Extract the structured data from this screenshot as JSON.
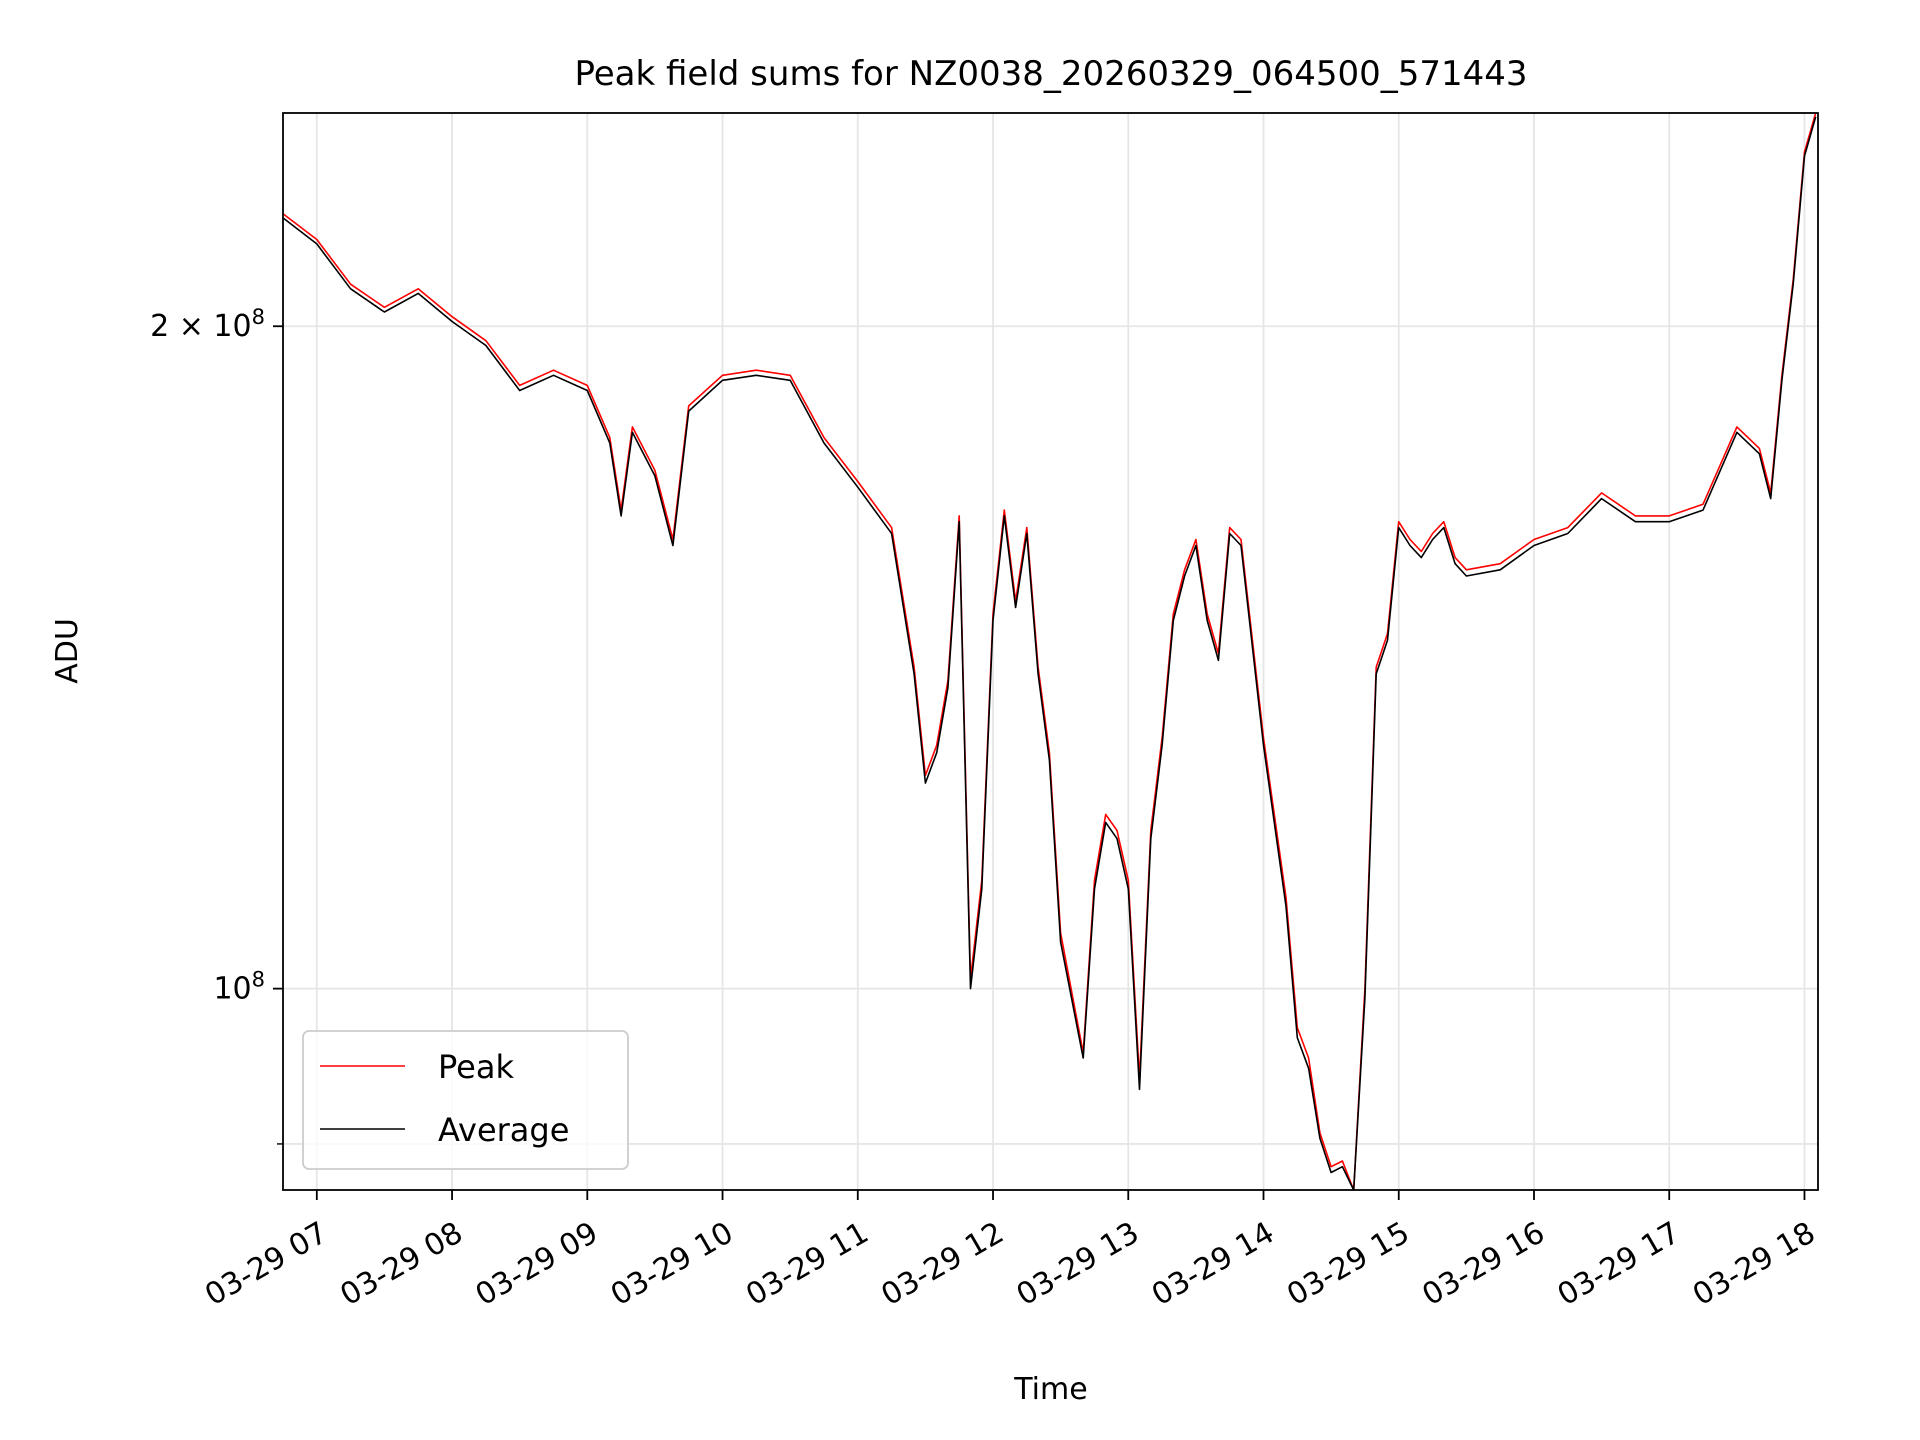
{
  "chart_data": {
    "type": "line",
    "title": "Peak field sums for NZ0038_20260329_064500_571443",
    "xlabel": "Time",
    "ylabel": "ADU",
    "yscale": "log",
    "xlim": [
      "03-29 06:45",
      "03-29 18:06"
    ],
    "ylim": [
      81000000,
      250000000
    ],
    "grid": true,
    "legend_position": "lower-left",
    "x_ticks": [
      "03-29 07",
      "03-29 08",
      "03-29 09",
      "03-29 10",
      "03-29 11",
      "03-29 12",
      "03-29 13",
      "03-29 14",
      "03-29 15",
      "03-29 16",
      "03-29 17",
      "03-29 18"
    ],
    "y_ticks": [
      {
        "value": 100000000,
        "base": "10",
        "exp": "8",
        "coef": ""
      },
      {
        "value": 200000000,
        "base": "10",
        "exp": "8",
        "coef": "2 × "
      }
    ],
    "y_minor_ticks": [
      85000000
    ],
    "series": [
      {
        "name": "Peak",
        "color": "#ff0000",
        "key": "peak"
      },
      {
        "name": "Average",
        "color": "#000000",
        "key": "average"
      }
    ],
    "x": [
      "03-29 06:45",
      "03-29 07:00",
      "03-29 07:15",
      "03-29 07:30",
      "03-29 07:45",
      "03-29 08:00",
      "03-29 08:15",
      "03-29 08:30",
      "03-29 08:45",
      "03-29 09:00",
      "03-29 09:10",
      "03-29 09:15",
      "03-29 09:20",
      "03-29 09:30",
      "03-29 09:38",
      "03-29 09:45",
      "03-29 10:00",
      "03-29 10:15",
      "03-29 10:30",
      "03-29 10:45",
      "03-29 11:00",
      "03-29 11:15",
      "03-29 11:25",
      "03-29 11:30",
      "03-29 11:35",
      "03-29 11:40",
      "03-29 11:45",
      "03-29 11:50",
      "03-29 11:55",
      "03-29 12:00",
      "03-29 12:05",
      "03-29 12:10",
      "03-29 12:15",
      "03-29 12:20",
      "03-29 12:25",
      "03-29 12:30",
      "03-29 12:40",
      "03-29 12:45",
      "03-29 12:50",
      "03-29 12:55",
      "03-29 13:00",
      "03-29 13:05",
      "03-29 13:10",
      "03-29 13:15",
      "03-29 13:20",
      "03-29 13:25",
      "03-29 13:30",
      "03-29 13:35",
      "03-29 13:40",
      "03-29 13:45",
      "03-29 13:50",
      "03-29 14:00",
      "03-29 14:10",
      "03-29 14:15",
      "03-29 14:20",
      "03-29 14:25",
      "03-29 14:30",
      "03-29 14:35",
      "03-29 14:40",
      "03-29 14:45",
      "03-29 14:50",
      "03-29 14:55",
      "03-29 15:00",
      "03-29 15:05",
      "03-29 15:10",
      "03-29 15:15",
      "03-29 15:20",
      "03-29 15:25",
      "03-29 15:30",
      "03-29 15:45",
      "03-29 16:00",
      "03-29 16:15",
      "03-29 16:30",
      "03-29 16:45",
      "03-29 17:00",
      "03-29 17:15",
      "03-29 17:30",
      "03-29 17:40",
      "03-29 17:45",
      "03-29 17:50",
      "03-29 17:55",
      "03-29 18:00",
      "03-29 18:05"
    ],
    "peak": [
      225000000,
      219000000,
      209000000,
      204000000,
      208000000,
      202000000,
      197000000,
      188000000,
      191000000,
      188000000,
      178000000,
      165000000,
      180000000,
      172000000,
      160000000,
      184000000,
      190000000,
      191000000,
      190000000,
      178000000,
      170000000,
      162000000,
      140000000,
      125000000,
      129000000,
      138000000,
      164000000,
      101000000,
      112000000,
      148000000,
      165000000,
      150000000,
      162000000,
      140000000,
      128000000,
      106000000,
      93500000,
      112000000,
      120000000,
      118000000,
      112000000,
      91000000,
      118000000,
      130000000,
      148000000,
      155000000,
      160000000,
      148000000,
      142000000,
      162000000,
      160000000,
      130000000,
      110000000,
      96000000,
      93000000,
      86000000,
      83000000,
      83500000,
      81000000,
      100000000,
      140000000,
      145000000,
      163000000,
      160000000,
      158000000,
      161000000,
      163000000,
      157000000,
      155000000,
      156000000,
      160000000,
      162000000,
      168000000,
      164000000,
      164000000,
      166000000,
      180000000,
      176000000,
      168000000,
      190000000,
      210000000,
      240000000,
      250000000
    ],
    "average": [
      224000000,
      218000000,
      208000000,
      203000000,
      207000000,
      201000000,
      196000000,
      187000000,
      190000000,
      187000000,
      177000000,
      164000000,
      179000000,
      171000000,
      159000000,
      183000000,
      189000000,
      190000000,
      189000000,
      177000000,
      169000000,
      161000000,
      139000000,
      124000000,
      128000000,
      137000000,
      163000000,
      100000000,
      111000000,
      147000000,
      164000000,
      149000000,
      161000000,
      139000000,
      127000000,
      105000000,
      93000000,
      111000000,
      119000000,
      117000000,
      111000000,
      90000000,
      117000000,
      129000000,
      147000000,
      154000000,
      159000000,
      147000000,
      141000000,
      161000000,
      159000000,
      129000000,
      109000000,
      95000000,
      92000000,
      85500000,
      82500000,
      83000000,
      80500000,
      99000000,
      139000000,
      144000000,
      162000000,
      159000000,
      157000000,
      160000000,
      162000000,
      156000000,
      154000000,
      155000000,
      159000000,
      161000000,
      167000000,
      163000000,
      163000000,
      165000000,
      179000000,
      175000000,
      167000000,
      189000000,
      209000000,
      239000000,
      249000000
    ]
  }
}
